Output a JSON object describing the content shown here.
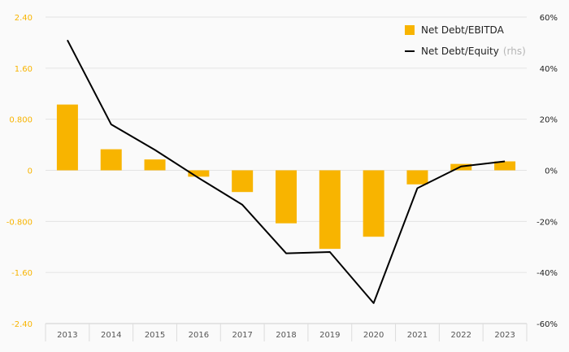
{
  "chart_data": {
    "type": "bar+line",
    "categories": [
      "2013",
      "2014",
      "2015",
      "2016",
      "2017",
      "2018",
      "2019",
      "2020",
      "2021",
      "2022",
      "2023"
    ],
    "series": [
      {
        "name": "Net Debt/EBITDA",
        "type": "bar",
        "axis": "left",
        "color": "#f8b400",
        "values": [
          1.03,
          0.33,
          0.17,
          -0.1,
          -0.34,
          -0.83,
          -1.23,
          -1.04,
          -0.22,
          0.1,
          0.14
        ]
      },
      {
        "name": "Net Debt/Equity",
        "label_suffix": "(rhs)",
        "type": "line",
        "axis": "right",
        "color": "#000000",
        "values": [
          51,
          18,
          8,
          -3,
          -13.5,
          -32.5,
          -32,
          -52,
          -7,
          1.5,
          3.5
        ]
      }
    ],
    "left_axis": {
      "ylim": [
        -2.4,
        2.4
      ],
      "ticks": [
        2.4,
        1.6,
        0.8,
        0,
        -0.8,
        -1.6,
        -2.4
      ],
      "tick_labels": [
        "2.40",
        "1.60",
        "0.800",
        "0",
        "-0.800",
        "-1.60",
        "-2.40"
      ],
      "label_color": "#f8b400"
    },
    "right_axis": {
      "ylim": [
        -60,
        60
      ],
      "ticks": [
        60,
        40,
        20,
        0,
        -20,
        -40,
        -60
      ],
      "tick_labels": [
        "60%",
        "40%",
        "20%",
        "0%",
        "-20%",
        "-40%",
        "-60%"
      ],
      "label_color": "#222222"
    },
    "grid": true,
    "legend_position": "top-right"
  }
}
